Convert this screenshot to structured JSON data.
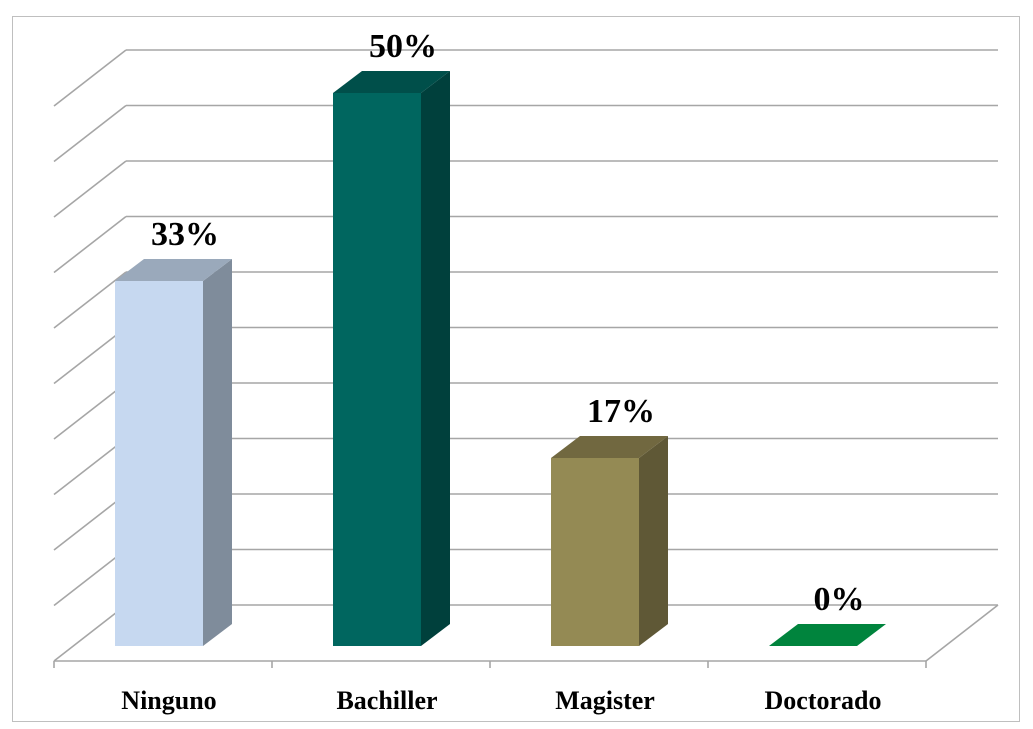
{
  "chart_data": {
    "type": "bar",
    "categories": [
      "Ninguno",
      "Bachiller",
      "Magister",
      "Doctorado"
    ],
    "values": [
      33,
      50,
      17,
      0
    ],
    "value_labels": [
      "33%",
      "50%",
      "17%",
      "0%"
    ],
    "ylim": [
      0,
      50
    ],
    "grid": true,
    "three_d": true,
    "legend": "none",
    "series_colors": [
      {
        "front": "#c6d8f0",
        "side": "#7f8c9b",
        "top": "#9aa9bb"
      },
      {
        "front": "#00665f",
        "side": "#00403c",
        "top": "#004f4a"
      },
      {
        "front": "#948a54",
        "side": "#5f5836",
        "top": "#716840"
      },
      {
        "front": "#00843d",
        "side": "#005f2c",
        "top": "#00843d"
      }
    ]
  }
}
